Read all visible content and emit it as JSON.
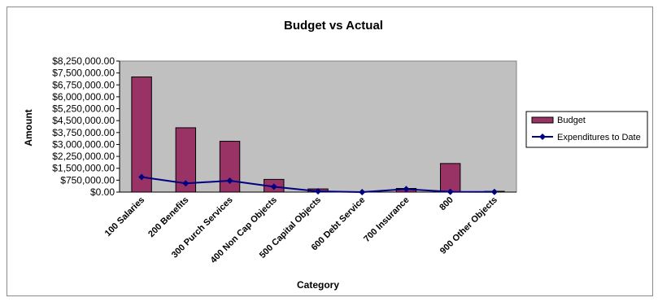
{
  "chart_data": {
    "type": "bar",
    "title": "Budget vs Actual",
    "xlabel": "Category",
    "ylabel": "Amount",
    "ylim": [
      0,
      8250000
    ],
    "ytick_step": 750000,
    "ytick_labels": [
      "$0.00",
      "$750,000.00",
      "$1,500,000.00",
      "$2,250,000.00",
      "$3,000,000.00",
      "$3,750,000.00",
      "$4,500,000.00",
      "$5,250,000.00",
      "$6,000,000.00",
      "$6,750,000.00",
      "$7,500,000.00",
      "$8,250,000.00"
    ],
    "categories": [
      "100 Salaries",
      "200 Benefits",
      "300 Purch Services",
      "400 Non Cap Objects",
      "500 Capital Objects",
      "600 Debt Service",
      "700 Insurance",
      "800",
      "900 Other Objects"
    ],
    "series": [
      {
        "name": "Budget",
        "kind": "bar",
        "color": "#993366",
        "values": [
          7250000,
          4050000,
          3200000,
          800000,
          200000,
          0,
          230000,
          1800000,
          50000
        ]
      },
      {
        "name": "Expenditures to Date",
        "kind": "line",
        "color": "#000080",
        "values": [
          950000,
          550000,
          720000,
          340000,
          50000,
          0,
          190000,
          20000,
          10000
        ]
      }
    ],
    "plot_background": "#c0c0c0",
    "legend_position": "right",
    "grid": false
  }
}
